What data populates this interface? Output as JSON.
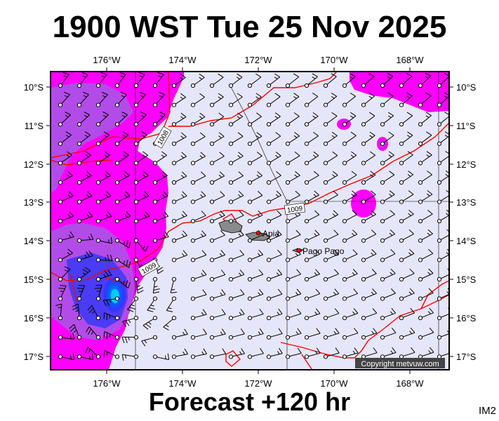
{
  "header": {
    "title": "1900 WST Tue 25 Nov 2025"
  },
  "footer": {
    "forecast_label": "Forecast +120 hr",
    "model_tag": "IM2"
  },
  "map": {
    "lon_ticks": [
      "176°W",
      "174°W",
      "172°W",
      "170°W",
      "168°W"
    ],
    "lat_ticks": [
      "10°S",
      "11°S",
      "12°S",
      "13°S",
      "14°S",
      "15°S",
      "16°S",
      "17°S"
    ],
    "places": [
      {
        "name": "Apia",
        "lon": -171.77,
        "lat": -13.83
      },
      {
        "name": "Pago Pago",
        "lon": -170.7,
        "lat": -14.28
      }
    ],
    "isobars": [
      {
        "label": "1008",
        "value": 1008
      },
      {
        "label": "1009",
        "value": 1009
      },
      {
        "label": "1009",
        "value": 1009
      }
    ],
    "copyright": "Copyright metvuw.com",
    "colors": {
      "background": "#e6e6fa",
      "rain_light": "#ff00ff",
      "rain_moderate": "#aa44ee",
      "rain_heavy": "#3333ff",
      "rain_intense": "#00bbff",
      "isobar": "#ff0000",
      "land": "#888888"
    }
  }
}
